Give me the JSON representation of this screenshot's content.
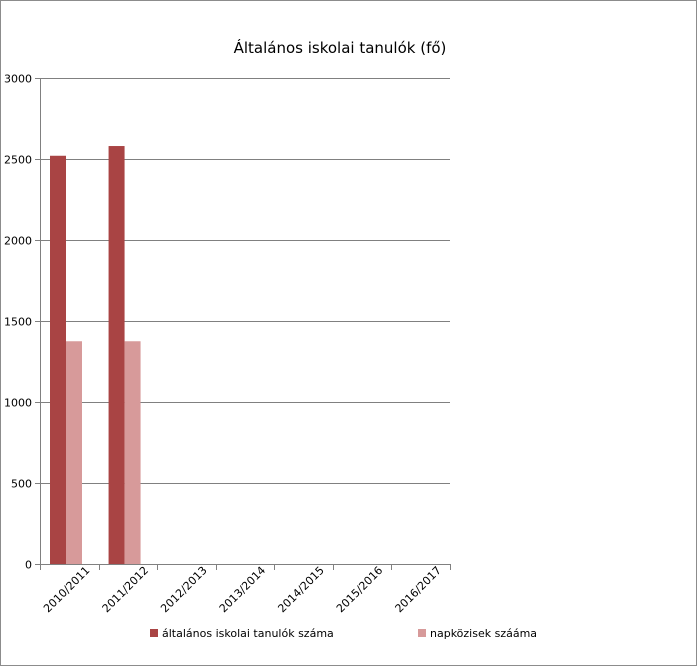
{
  "chart_data": {
    "type": "bar",
    "title": "Általános iskolai tanulók (fő)",
    "categories": [
      "2010/2011",
      "2011/2012",
      "2012/2013",
      "2013/2014",
      "2014/2015",
      "2015/2016",
      "2016/2017"
    ],
    "series": [
      {
        "name": "általános iskolai tanulók száma",
        "values": [
          2520,
          2580,
          null,
          null,
          null,
          null,
          null
        ],
        "color": "#a94444"
      },
      {
        "name": "napközisek szááma",
        "values": [
          1375,
          1375,
          null,
          null,
          null,
          null,
          null
        ],
        "color": "#d79a9a"
      }
    ],
    "yticks": [
      "0",
      "500",
      "1000",
      "1500",
      "2000",
      "2500",
      "3000"
    ],
    "ylim": [
      0,
      3000
    ],
    "grid": true,
    "legend": "bottom",
    "axis_color": "#808080",
    "grid_color": "#808080"
  }
}
